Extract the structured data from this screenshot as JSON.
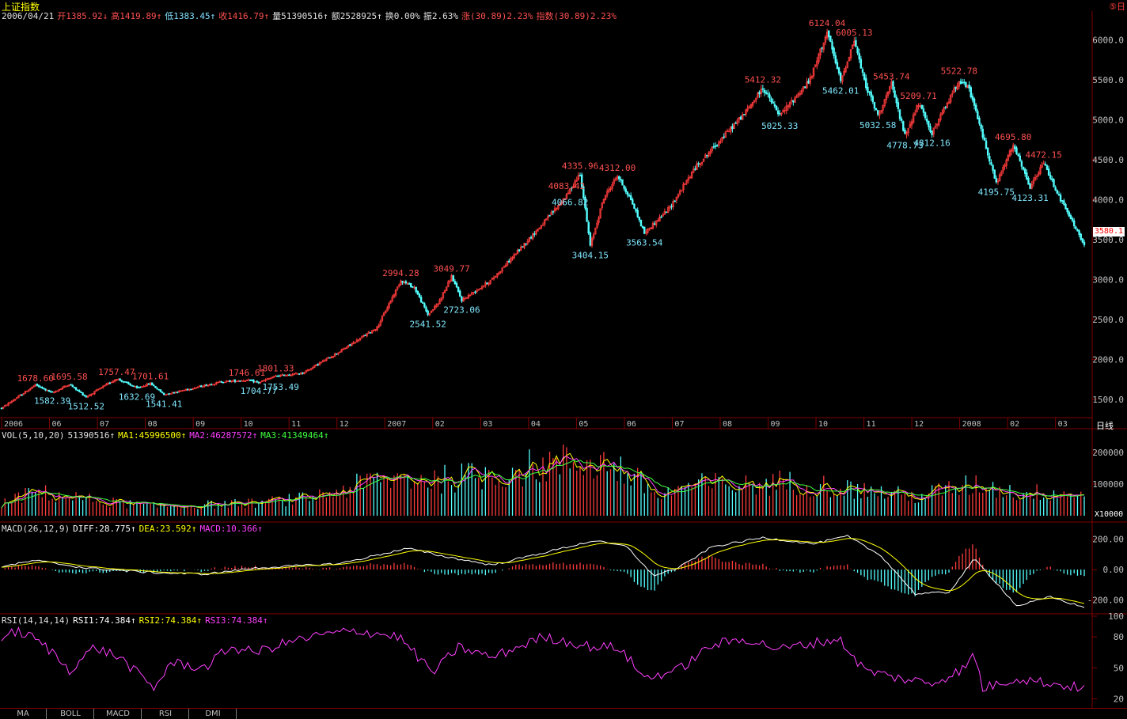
{
  "title": "上证指数",
  "corner_label": "⑤日",
  "period_label": "日线",
  "vol_unit": "X10000",
  "current_price_tag": "3580.1",
  "info_bar": {
    "date": "2006/04/21",
    "items": [
      {
        "text": "开1385.92↓",
        "color": "#ff5050"
      },
      {
        "text": "高1419.89↑",
        "color": "#ff5050"
      },
      {
        "text": "低1383.45↑",
        "color": "#80e0ff"
      },
      {
        "text": "收1416.79↑",
        "color": "#ff5050"
      },
      {
        "text": "量51390516↑",
        "color": "#e0e0e0"
      },
      {
        "text": "额2528925↑",
        "color": "#e0e0e0"
      },
      {
        "text": "换0.00%",
        "color": "#e0e0e0"
      },
      {
        "text": "振2.63%",
        "color": "#e0e0e0"
      },
      {
        "text": "涨(30.89)2.23%",
        "color": "#ff5050"
      },
      {
        "text": "指数(30.89)2.23%",
        "color": "#ff5050"
      }
    ]
  },
  "vol_header": [
    {
      "text": "VOL(5,10,20)",
      "color": "#e0e0e0"
    },
    {
      "text": "51390516↑",
      "color": "#e0e0e0"
    },
    {
      "text": "MA1:45996500↑",
      "color": "#ffff00"
    },
    {
      "text": "MA2:46287572↑",
      "color": "#ff40ff"
    },
    {
      "text": "MA3:41349464↑",
      "color": "#40ff40"
    }
  ],
  "macd_header": [
    {
      "text": "MACD(26,12,9)",
      "color": "#e0e0e0"
    },
    {
      "text": "DIFF:28.775↑",
      "color": "#ffffff"
    },
    {
      "text": "DEA:23.592↑",
      "color": "#ffff00"
    },
    {
      "text": "MACD:10.366↑",
      "color": "#ff40ff"
    }
  ],
  "rsi_header": [
    {
      "text": "RSI(14,14,14)",
      "color": "#e0e0e0"
    },
    {
      "text": "RSI1:74.384↑",
      "color": "#ffffff"
    },
    {
      "text": "RSI2:74.384↑",
      "color": "#ffff00"
    },
    {
      "text": "RSI3:74.384↑",
      "color": "#ff40ff"
    }
  ],
  "tabs": [
    "MA",
    "BOLL",
    "MACD",
    "RSI",
    "DMI"
  ],
  "colors": {
    "up": "#ff3c3c",
    "down": "#54ffff",
    "grid": "#800000",
    "axis_text": "#c0c0c0"
  },
  "chart_data": [
    {
      "type": "candlestick",
      "title": "上证指数",
      "ylim": [
        1350,
        6300
      ],
      "y_ticks": [
        1500,
        2000,
        2500,
        3000,
        3500,
        4000,
        4500,
        5000,
        5500,
        6000
      ],
      "y_tick_labels": [
        "1500.0",
        "2000.0",
        "2500.0",
        "3000.0",
        "3500.0",
        "4000.0",
        "4500.0",
        "5000.0",
        "5500.0",
        "6000.0"
      ],
      "x_tick_labels": [
        "2006",
        "06",
        "07",
        "08",
        "09",
        "10",
        "11",
        "12",
        "2007",
        "02",
        "03",
        "04",
        "05",
        "06",
        "07",
        "08",
        "09",
        "10",
        "11",
        "12",
        "2008",
        "02",
        "03"
      ],
      "price_path": [
        {
          "t": 0,
          "v": 1390
        },
        {
          "t": 20,
          "v": 1680
        },
        {
          "t": 30,
          "v": 1580
        },
        {
          "t": 40,
          "v": 1690
        },
        {
          "t": 50,
          "v": 1530
        },
        {
          "t": 68,
          "v": 1760
        },
        {
          "t": 80,
          "v": 1640
        },
        {
          "t": 88,
          "v": 1700
        },
        {
          "t": 96,
          "v": 1560
        },
        {
          "t": 130,
          "v": 1720
        },
        {
          "t": 145,
          "v": 1740
        },
        {
          "t": 152,
          "v": 1710
        },
        {
          "t": 162,
          "v": 1790
        },
        {
          "t": 178,
          "v": 1830
        },
        {
          "t": 200,
          "v": 2100
        },
        {
          "t": 222,
          "v": 2400
        },
        {
          "t": 236,
          "v": 2990
        },
        {
          "t": 244,
          "v": 2900
        },
        {
          "t": 252,
          "v": 2560
        },
        {
          "t": 258,
          "v": 2700
        },
        {
          "t": 266,
          "v": 3040
        },
        {
          "t": 272,
          "v": 2740
        },
        {
          "t": 290,
          "v": 3000
        },
        {
          "t": 320,
          "v": 3700
        },
        {
          "t": 334,
          "v": 4050
        },
        {
          "t": 342,
          "v": 4330
        },
        {
          "t": 348,
          "v": 3420
        },
        {
          "t": 356,
          "v": 4020
        },
        {
          "t": 364,
          "v": 4300
        },
        {
          "t": 372,
          "v": 4000
        },
        {
          "t": 380,
          "v": 3580
        },
        {
          "t": 395,
          "v": 3900
        },
        {
          "t": 410,
          "v": 4400
        },
        {
          "t": 440,
          "v": 5100
        },
        {
          "t": 450,
          "v": 5400
        },
        {
          "t": 460,
          "v": 5050
        },
        {
          "t": 478,
          "v": 5500
        },
        {
          "t": 488,
          "v": 6100
        },
        {
          "t": 496,
          "v": 5480
        },
        {
          "t": 504,
          "v": 6000
        },
        {
          "t": 510,
          "v": 5480
        },
        {
          "t": 518,
          "v": 5050
        },
        {
          "t": 526,
          "v": 5440
        },
        {
          "t": 534,
          "v": 4800
        },
        {
          "t": 542,
          "v": 5200
        },
        {
          "t": 550,
          "v": 4830
        },
        {
          "t": 566,
          "v": 5500
        },
        {
          "t": 572,
          "v": 5380
        },
        {
          "t": 580,
          "v": 4800
        },
        {
          "t": 588,
          "v": 4200
        },
        {
          "t": 598,
          "v": 4680
        },
        {
          "t": 608,
          "v": 4150
        },
        {
          "t": 616,
          "v": 4460
        },
        {
          "t": 626,
          "v": 4000
        },
        {
          "t": 636,
          "v": 3600
        },
        {
          "t": 640,
          "v": 3420
        }
      ],
      "annotations": [
        {
          "text": "1678.60",
          "t": 20,
          "v": 1678.6,
          "pos": "high"
        },
        {
          "text": "1582.39",
          "t": 30,
          "v": 1582.39,
          "pos": "low"
        },
        {
          "text": "1695.58",
          "t": 40,
          "v": 1695.58,
          "pos": "high"
        },
        {
          "text": "1512.52",
          "t": 50,
          "v": 1512.52,
          "pos": "low"
        },
        {
          "text": "1757.47",
          "t": 68,
          "v": 1757.47,
          "pos": "high"
        },
        {
          "text": "1632.69",
          "t": 80,
          "v": 1632.69,
          "pos": "low"
        },
        {
          "text": "1701.61",
          "t": 88,
          "v": 1701.61,
          "pos": "high"
        },
        {
          "text": "1541.41",
          "t": 96,
          "v": 1541.41,
          "pos": "low"
        },
        {
          "text": "1746.61",
          "t": 145,
          "v": 1746.61,
          "pos": "high"
        },
        {
          "text": "1704.77",
          "t": 152,
          "v": 1704.77,
          "pos": "low"
        },
        {
          "text": "1801.33",
          "t": 162,
          "v": 1801.33,
          "pos": "high"
        },
        {
          "text": "1753.49",
          "t": 165,
          "v": 1753.49,
          "pos": "low"
        },
        {
          "text": "2994.28",
          "t": 236,
          "v": 2994.28,
          "pos": "high"
        },
        {
          "text": "2541.52",
          "t": 252,
          "v": 2541.52,
          "pos": "low"
        },
        {
          "text": "3049.77",
          "t": 266,
          "v": 3049.77,
          "pos": "high"
        },
        {
          "text": "2723.06",
          "t": 272,
          "v": 2723.06,
          "pos": "low"
        },
        {
          "text": "4083.42",
          "t": 334,
          "v": 4083.42,
          "pos": "high"
        },
        {
          "text": "4066.82",
          "t": 336,
          "v": 4066.82,
          "pos": "low"
        },
        {
          "text": "4335.96",
          "t": 342,
          "v": 4335.96,
          "pos": "high"
        },
        {
          "text": "3404.15",
          "t": 348,
          "v": 3404.15,
          "pos": "low"
        },
        {
          "text": "4312.00",
          "t": 364,
          "v": 4312.0,
          "pos": "high"
        },
        {
          "text": "3563.54",
          "t": 380,
          "v": 3563.54,
          "pos": "low"
        },
        {
          "text": "5412.32",
          "t": 450,
          "v": 5412.32,
          "pos": "high"
        },
        {
          "text": "5025.33",
          "t": 460,
          "v": 5025.33,
          "pos": "low"
        },
        {
          "text": "6124.04",
          "t": 488,
          "v": 6124.04,
          "pos": "high"
        },
        {
          "text": "5462.01",
          "t": 496,
          "v": 5462.01,
          "pos": "low"
        },
        {
          "text": "6005.13",
          "t": 504,
          "v": 6005.13,
          "pos": "high"
        },
        {
          "text": "5032.58",
          "t": 518,
          "v": 5032.58,
          "pos": "low"
        },
        {
          "text": "5453.74",
          "t": 526,
          "v": 5453.74,
          "pos": "high"
        },
        {
          "text": "4778.73",
          "t": 534,
          "v": 4778.73,
          "pos": "low"
        },
        {
          "text": "5209.71",
          "t": 542,
          "v": 5209.71,
          "pos": "high"
        },
        {
          "text": "4812.16",
          "t": 550,
          "v": 4812.16,
          "pos": "low"
        },
        {
          "text": "5522.78",
          "t": 566,
          "v": 5522.78,
          "pos": "high"
        },
        {
          "text": "4695.80",
          "t": 598,
          "v": 4695.8,
          "pos": "high"
        },
        {
          "text": "4195.75",
          "t": 588,
          "v": 4195.75,
          "pos": "low"
        },
        {
          "text": "4472.15",
          "t": 616,
          "v": 4472.15,
          "pos": "high"
        },
        {
          "text": "4123.31",
          "t": 608,
          "v": 4123.31,
          "pos": "low"
        }
      ]
    },
    {
      "type": "bar",
      "title": "VOL(5,10,20)",
      "y_tick_labels": [
        "100000",
        "200000"
      ],
      "y_ticks": [
        100000,
        200000
      ],
      "ylim": [
        0,
        240000
      ],
      "volume_path": [
        {
          "t": 0,
          "v": 40000
        },
        {
          "t": 20,
          "v": 75000
        },
        {
          "t": 40,
          "v": 60000
        },
        {
          "t": 60,
          "v": 45000
        },
        {
          "t": 90,
          "v": 30000
        },
        {
          "t": 120,
          "v": 35000
        },
        {
          "t": 150,
          "v": 40000
        },
        {
          "t": 180,
          "v": 55000
        },
        {
          "t": 200,
          "v": 80000
        },
        {
          "t": 220,
          "v": 110000
        },
        {
          "t": 240,
          "v": 120000
        },
        {
          "t": 260,
          "v": 115000
        },
        {
          "t": 280,
          "v": 125000
        },
        {
          "t": 300,
          "v": 140000
        },
        {
          "t": 320,
          "v": 160000
        },
        {
          "t": 340,
          "v": 170000
        },
        {
          "t": 350,
          "v": 175000
        },
        {
          "t": 365,
          "v": 150000
        },
        {
          "t": 380,
          "v": 95000
        },
        {
          "t": 390,
          "v": 60000
        },
        {
          "t": 400,
          "v": 90000
        },
        {
          "t": 420,
          "v": 100000
        },
        {
          "t": 440,
          "v": 95000
        },
        {
          "t": 460,
          "v": 105000
        },
        {
          "t": 480,
          "v": 100000
        },
        {
          "t": 500,
          "v": 85000
        },
        {
          "t": 520,
          "v": 75000
        },
        {
          "t": 540,
          "v": 60000
        },
        {
          "t": 560,
          "v": 85000
        },
        {
          "t": 580,
          "v": 100000
        },
        {
          "t": 600,
          "v": 70000
        },
        {
          "t": 620,
          "v": 75000
        },
        {
          "t": 640,
          "v": 65000
        }
      ]
    },
    {
      "type": "bar",
      "title": "MACD(26,12,9)",
      "y_tick_labels": [
        "-200.00",
        "0.00",
        "200.00"
      ],
      "y_ticks": [
        -200,
        0,
        200
      ],
      "ylim": [
        -260,
        240
      ],
      "diff_path": [
        {
          "t": 0,
          "v": 20
        },
        {
          "t": 20,
          "v": 60
        },
        {
          "t": 50,
          "v": 10
        },
        {
          "t": 90,
          "v": -20
        },
        {
          "t": 120,
          "v": -30
        },
        {
          "t": 150,
          "v": 10
        },
        {
          "t": 200,
          "v": 40
        },
        {
          "t": 240,
          "v": 140
        },
        {
          "t": 260,
          "v": 90
        },
        {
          "t": 290,
          "v": 30
        },
        {
          "t": 320,
          "v": 110
        },
        {
          "t": 350,
          "v": 190
        },
        {
          "t": 370,
          "v": 150
        },
        {
          "t": 385,
          "v": -40
        },
        {
          "t": 400,
          "v": 10
        },
        {
          "t": 420,
          "v": 150
        },
        {
          "t": 450,
          "v": 210
        },
        {
          "t": 480,
          "v": 170
        },
        {
          "t": 500,
          "v": 220
        },
        {
          "t": 520,
          "v": 90
        },
        {
          "t": 540,
          "v": -160
        },
        {
          "t": 560,
          "v": -150
        },
        {
          "t": 575,
          "v": 70
        },
        {
          "t": 590,
          "v": -110
        },
        {
          "t": 600,
          "v": -240
        },
        {
          "t": 620,
          "v": -180
        },
        {
          "t": 640,
          "v": -250
        }
      ]
    },
    {
      "type": "line",
      "title": "RSI(14,14,14)",
      "y_tick_labels": [
        "20",
        "50",
        "80",
        "100"
      ],
      "y_ticks": [
        20,
        50,
        80,
        100
      ],
      "ylim": [
        15,
        100
      ],
      "rsi_path": [
        {
          "t": 0,
          "v": 80
        },
        {
          "t": 10,
          "v": 85
        },
        {
          "t": 20,
          "v": 78
        },
        {
          "t": 30,
          "v": 65
        },
        {
          "t": 40,
          "v": 48
        },
        {
          "t": 55,
          "v": 70
        },
        {
          "t": 70,
          "v": 60
        },
        {
          "t": 90,
          "v": 30
        },
        {
          "t": 100,
          "v": 55
        },
        {
          "t": 120,
          "v": 50
        },
        {
          "t": 135,
          "v": 70
        },
        {
          "t": 150,
          "v": 65
        },
        {
          "t": 170,
          "v": 75
        },
        {
          "t": 190,
          "v": 82
        },
        {
          "t": 210,
          "v": 86
        },
        {
          "t": 235,
          "v": 80
        },
        {
          "t": 255,
          "v": 45
        },
        {
          "t": 270,
          "v": 70
        },
        {
          "t": 290,
          "v": 60
        },
        {
          "t": 320,
          "v": 80
        },
        {
          "t": 335,
          "v": 75
        },
        {
          "t": 350,
          "v": 70
        },
        {
          "t": 365,
          "v": 70
        },
        {
          "t": 380,
          "v": 40
        },
        {
          "t": 400,
          "v": 48
        },
        {
          "t": 420,
          "v": 72
        },
        {
          "t": 440,
          "v": 78
        },
        {
          "t": 460,
          "v": 68
        },
        {
          "t": 480,
          "v": 74
        },
        {
          "t": 495,
          "v": 78
        },
        {
          "t": 510,
          "v": 48
        },
        {
          "t": 530,
          "v": 40
        },
        {
          "t": 550,
          "v": 35
        },
        {
          "t": 570,
          "v": 50
        },
        {
          "t": 575,
          "v": 65
        },
        {
          "t": 580,
          "v": 30
        },
        {
          "t": 600,
          "v": 40
        },
        {
          "t": 620,
          "v": 35
        },
        {
          "t": 640,
          "v": 30
        }
      ]
    }
  ]
}
